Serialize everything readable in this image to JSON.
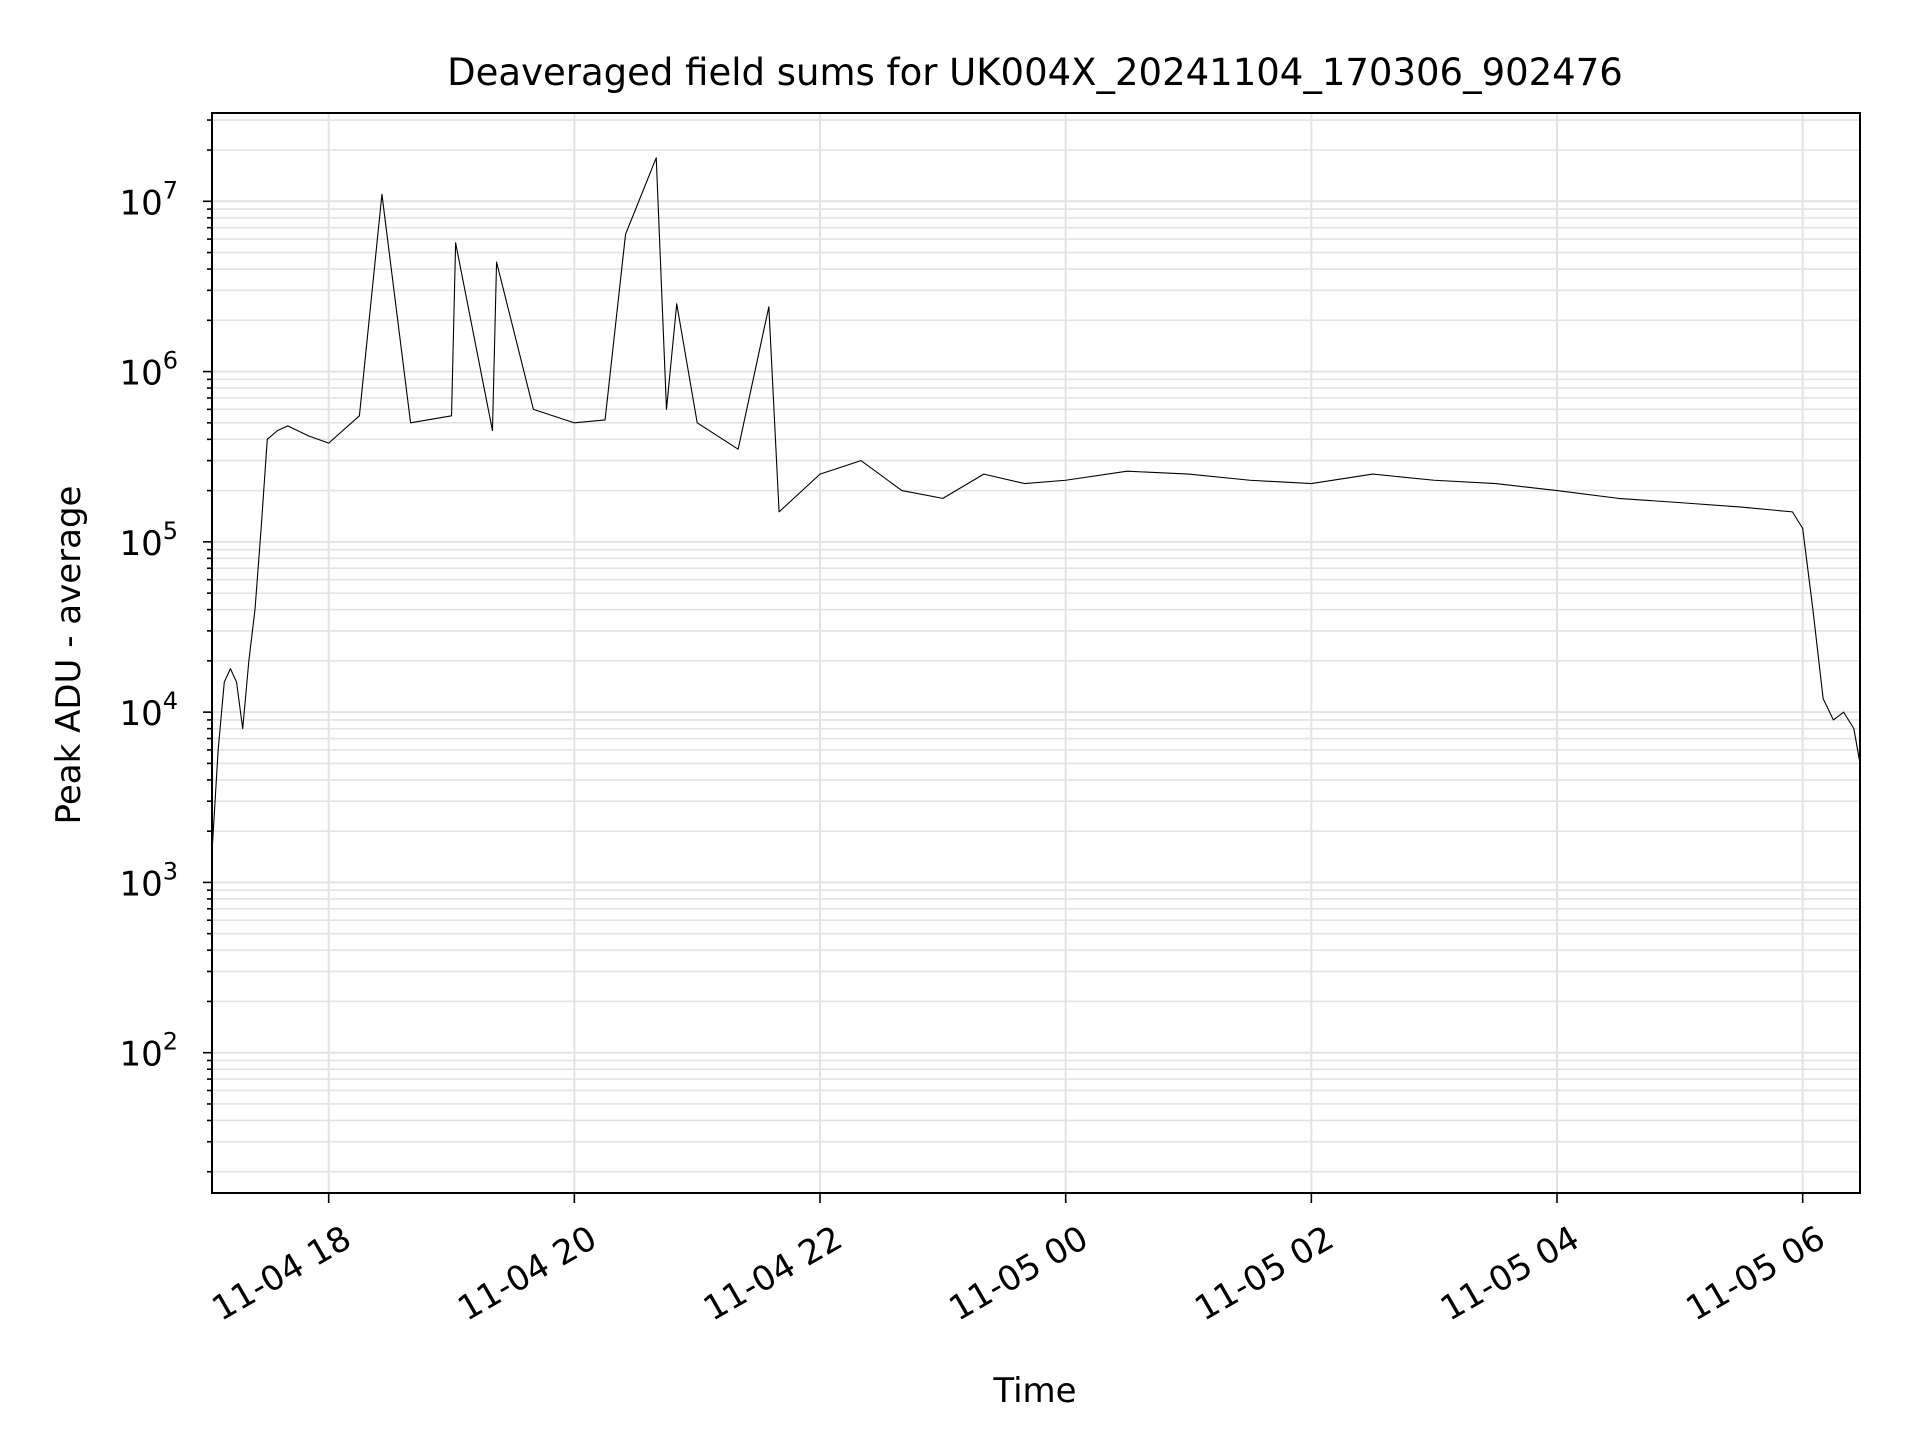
{
  "chart_data": {
    "type": "line",
    "title": "Deaveraged field sums for UK004X_20241104_170306_902476",
    "xlabel": "Time",
    "ylabel": "Peak ADU - average",
    "x_scale": "time",
    "y_scale": "log",
    "xlim": [
      "2024-11-04 17:03",
      "2024-11-05 06:28"
    ],
    "ylim": [
      15,
      33000000
    ],
    "x_ticks": [
      "11-04 18",
      "11-04 20",
      "11-04 22",
      "11-05 00",
      "11-05 02",
      "11-05 04",
      "11-05 06"
    ],
    "y_ticks": [
      {
        "base": "10",
        "exp": "2"
      },
      {
        "base": "10",
        "exp": "3"
      },
      {
        "base": "10",
        "exp": "4"
      },
      {
        "base": "10",
        "exp": "5"
      },
      {
        "base": "10",
        "exp": "6"
      },
      {
        "base": "10",
        "exp": "7"
      }
    ],
    "grid": "major and minor",
    "legend": "none",
    "line_color": "#000000",
    "grid_color": "#e3e3e3",
    "series": [
      {
        "x": [
          "2024-11-04 17:03",
          "2024-11-04 17:06",
          "2024-11-04 17:09",
          "2024-11-04 17:12",
          "2024-11-04 17:15",
          "2024-11-04 17:18",
          "2024-11-04 17:21",
          "2024-11-04 17:24",
          "2024-11-04 17:27",
          "2024-11-04 17:30",
          "2024-11-04 17:35",
          "2024-11-04 17:40",
          "2024-11-04 17:50",
          "2024-11-04 18:00",
          "2024-11-04 18:15",
          "2024-11-04 18:26",
          "2024-11-04 18:40",
          "2024-11-04 19:00",
          "2024-11-04 19:02",
          "2024-11-04 19:20",
          "2024-11-04 19:22",
          "2024-11-04 19:40",
          "2024-11-04 20:00",
          "2024-11-04 20:15",
          "2024-11-04 20:25",
          "2024-11-04 20:40",
          "2024-11-04 20:45",
          "2024-11-04 20:50",
          "2024-11-04 21:00",
          "2024-11-04 21:20",
          "2024-11-04 21:35",
          "2024-11-04 21:40",
          "2024-11-04 22:00",
          "2024-11-04 22:20",
          "2024-11-04 22:40",
          "2024-11-04 23:00",
          "2024-11-04 23:20",
          "2024-11-04 23:40",
          "2024-11-05 00:00",
          "2024-11-05 00:30",
          "2024-11-05 01:00",
          "2024-11-05 01:30",
          "2024-11-05 02:00",
          "2024-11-05 02:30",
          "2024-11-05 03:00",
          "2024-11-05 03:30",
          "2024-11-05 04:00",
          "2024-11-05 04:30",
          "2024-11-05 05:00",
          "2024-11-05 05:30",
          "2024-11-05 05:55",
          "2024-11-05 06:00",
          "2024-11-05 06:05",
          "2024-11-05 06:10",
          "2024-11-05 06:15",
          "2024-11-05 06:20",
          "2024-11-05 06:25",
          "2024-11-05 06:28"
        ],
        "y": [
          1500,
          6000,
          15000,
          18000,
          15000,
          8000,
          20000,
          40000,
          120000,
          400000,
          450000,
          480000,
          420000,
          380000,
          550000,
          11000000,
          500000,
          550000,
          5700000,
          450000,
          4400000,
          600000,
          500000,
          520000,
          6400000,
          18000000,
          600000,
          2500000,
          500000,
          350000,
          2400000,
          150000,
          250000,
          300000,
          200000,
          180000,
          250000,
          220000,
          230000,
          260000,
          250000,
          230000,
          220000,
          250000,
          230000,
          220000,
          200000,
          180000,
          170000,
          160000,
          150000,
          120000,
          40000,
          12000,
          9000,
          10000,
          8000,
          5000
        ]
      }
    ]
  }
}
